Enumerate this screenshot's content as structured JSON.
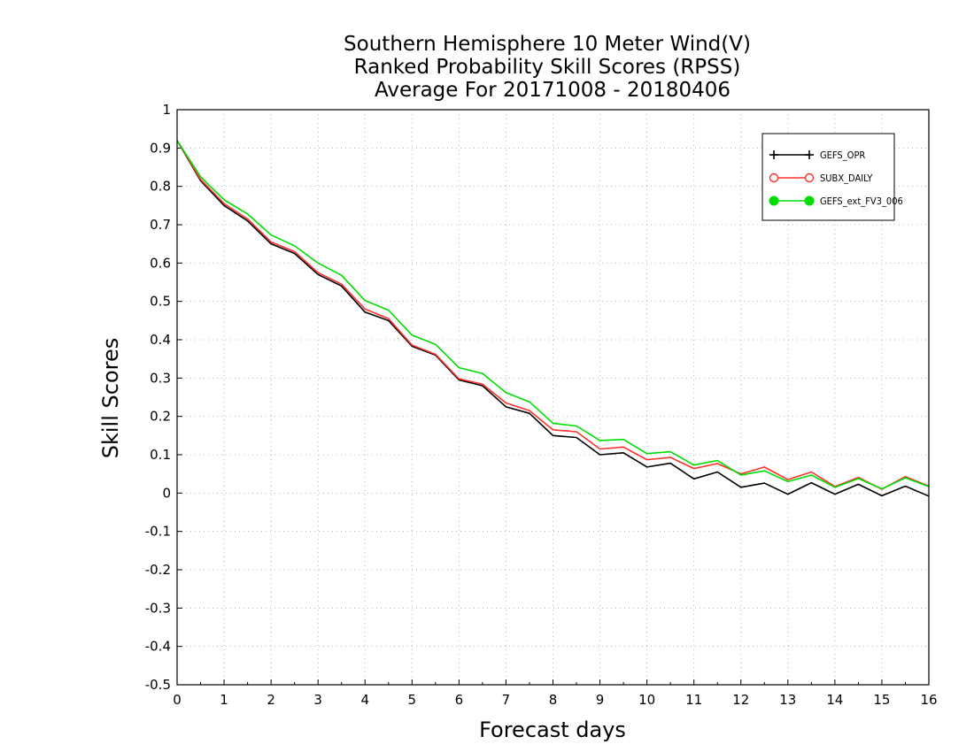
{
  "chart_data": {
    "type": "line",
    "title": [
      "Southern Hemisphere 10 Meter Wind(V)",
      "Ranked Probability Skill Scores (RPSS)",
      "Average For 20171008 - 20180406"
    ],
    "xlabel": "Forecast days",
    "ylabel": "Skill Scores",
    "xlim": [
      0,
      16
    ],
    "ylim": [
      -0.5,
      1
    ],
    "x_ticks": [
      "0",
      "1",
      "2",
      "3",
      "4",
      "5",
      "6",
      "7",
      "8",
      "9",
      "10",
      "11",
      "12",
      "13",
      "14",
      "15",
      "16"
    ],
    "y_ticks": [
      "-0.5",
      "-0.4",
      "-0.3",
      "-0.2",
      "-0.1",
      "0",
      "0.1",
      "0.2",
      "0.3",
      "0.4",
      "0.5",
      "0.6",
      "0.7",
      "0.8",
      "0.9",
      "1"
    ],
    "grid": true,
    "legend_position": "top-right",
    "x": [
      0,
      0.5,
      1,
      1.5,
      2,
      2.5,
      3,
      3.5,
      4,
      4.5,
      5,
      5.5,
      6,
      6.5,
      7,
      7.5,
      8,
      8.5,
      9,
      9.5,
      10,
      10.5,
      11,
      11.5,
      12,
      12.5,
      13,
      13.5,
      14,
      14.5,
      15,
      15.5,
      16
    ],
    "series": [
      {
        "name": "GEFS_OPR",
        "color": "#000000",
        "marker": "plus",
        "values": [
          0.92,
          0.815,
          0.75,
          0.71,
          0.65,
          0.625,
          0.57,
          0.54,
          0.472,
          0.45,
          0.383,
          0.36,
          0.295,
          0.28,
          0.225,
          0.208,
          0.15,
          0.145,
          0.1,
          0.105,
          0.068,
          0.078,
          0.037,
          0.055,
          0.015,
          0.026,
          -0.003,
          0.027,
          -0.003,
          0.023,
          -0.007,
          0.018,
          -0.008
        ]
      },
      {
        "name": "SUBX_DAILY",
        "color": "#ff3030",
        "marker": "open-circle",
        "values": [
          0.92,
          0.818,
          0.755,
          0.715,
          0.655,
          0.63,
          0.575,
          0.545,
          0.48,
          0.455,
          0.386,
          0.362,
          0.298,
          0.284,
          0.235,
          0.215,
          0.165,
          0.16,
          0.115,
          0.12,
          0.087,
          0.093,
          0.064,
          0.077,
          0.05,
          0.068,
          0.035,
          0.055,
          0.017,
          0.041,
          0.01,
          0.043,
          0.018
        ]
      },
      {
        "name": "GEFS_ext_FV3_006",
        "color": "#00dd00",
        "marker": "filled-circle",
        "values": [
          0.92,
          0.825,
          0.765,
          0.728,
          0.673,
          0.645,
          0.6,
          0.568,
          0.502,
          0.477,
          0.412,
          0.388,
          0.327,
          0.312,
          0.262,
          0.238,
          0.182,
          0.175,
          0.137,
          0.14,
          0.103,
          0.108,
          0.073,
          0.085,
          0.047,
          0.058,
          0.03,
          0.047,
          0.015,
          0.038,
          0.011,
          0.04,
          0.017
        ]
      }
    ]
  }
}
